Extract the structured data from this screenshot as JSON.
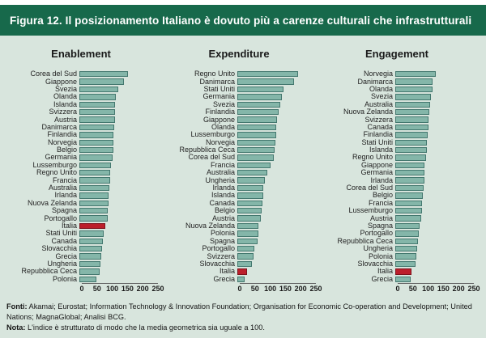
{
  "title": "Figura 12. Il posizionamento Italiano è dovuto più a carenze culturali che infrastrutturali",
  "highlight_country": "Italia",
  "colors": {
    "header_bg": "#17694b",
    "panel_bg": "#d8e5dd",
    "bar_fill": "#84b6a9",
    "bar_border": "#44786f",
    "highlight_fill": "#bc1f2b",
    "highlight_border": "#7d121c"
  },
  "chart_data": [
    {
      "type": "bar",
      "orientation": "horizontal",
      "title": "Enablement",
      "xlim": [
        0,
        250
      ],
      "xticks": [
        "0",
        "50",
        "100",
        "150",
        "200",
        "250"
      ],
      "categories": [
        "Corea del Sud",
        "Giappone",
        "Svezia",
        "Olanda",
        "Islanda",
        "Svizzera",
        "Austria",
        "Danimarca",
        "Finlandia",
        "Norvegia",
        "Belgio",
        "Germania",
        "Lussemburgo",
        "Regno Unito",
        "Francia",
        "Australia",
        "Irlanda",
        "Nuova Zelanda",
        "Spagna",
        "Portogallo",
        "Italia",
        "Stati Uniti",
        "Canada",
        "Slovacchia",
        "Grecia",
        "Ungheria",
        "Repubblica Ceca",
        "Polonia"
      ],
      "values": [
        160,
        147,
        127,
        120,
        118,
        118,
        117,
        115,
        113,
        112,
        111,
        110,
        103,
        102,
        100,
        99,
        97,
        95,
        93,
        92,
        85,
        80,
        77,
        74,
        71,
        68,
        66,
        56
      ]
    },
    {
      "type": "bar",
      "orientation": "horizontal",
      "title": "Expenditure",
      "xlim": [
        0,
        250
      ],
      "xticks": [
        "0",
        "50",
        "100",
        "150",
        "200",
        "250"
      ],
      "categories": [
        "Regno Unito",
        "Danimarca",
        "Stati Uniti",
        "Germania",
        "Svezia",
        "Finlandia",
        "Giappone",
        "Olanda",
        "Lussemburgo",
        "Norvegia",
        "Repubblica Ceca",
        "Corea del Sud",
        "Francia",
        "Australia",
        "Ungheria",
        "Irlanda",
        "Islanda",
        "Canada",
        "Belgio",
        "Austria",
        "Nuova Zelanda",
        "Polonia",
        "Spagna",
        "Portogallo",
        "Svizzera",
        "Slovacchia",
        "Italia",
        "Grecia"
      ],
      "values": [
        200,
        185,
        152,
        145,
        140,
        136,
        131,
        128,
        127,
        124,
        123,
        120,
        110,
        98,
        90,
        86,
        84,
        82,
        80,
        78,
        70,
        68,
        66,
        56,
        54,
        48,
        32,
        24
      ]
    },
    {
      "type": "bar",
      "orientation": "horizontal",
      "title": "Engagement",
      "xlim": [
        0,
        250
      ],
      "xticks": [
        "0",
        "50",
        "100",
        "150",
        "200",
        "250"
      ],
      "categories": [
        "Norvegia",
        "Danimarca",
        "Olanda",
        "Svezia",
        "Australia",
        "Nuova Zelanda",
        "Svizzera",
        "Canada",
        "Finlandia",
        "Stati Uniti",
        "Islanda",
        "Regno Unito",
        "Giappone",
        "Germania",
        "Irlanda",
        "Corea del Sud",
        "Belgio",
        "Francia",
        "Lussemburgo",
        "Austria",
        "Spagna",
        "Portogallo",
        "Repubblica Ceca",
        "Ungheria",
        "Polonia",
        "Slovacchia",
        "Italia",
        "Grecia"
      ],
      "values": [
        134,
        123,
        122,
        117,
        115,
        113,
        110,
        109,
        107,
        105,
        103,
        101,
        97,
        96,
        95,
        93,
        91,
        88,
        87,
        84,
        81,
        77,
        75,
        72,
        68,
        66,
        54,
        51
      ]
    }
  ],
  "footer": {
    "fonti_label": "Fonti:",
    "fonti_text": " Akamai; Eurostat; Information Technology & Innovation Foundation; Organisation for Economic Co-operation and Development; United Nations; MagnaGlobal; Analisi BCG.",
    "nota_label": "Nota:",
    "nota_text": " L'indice è strutturato di modo che la media geometrica sia uguale a 100."
  }
}
